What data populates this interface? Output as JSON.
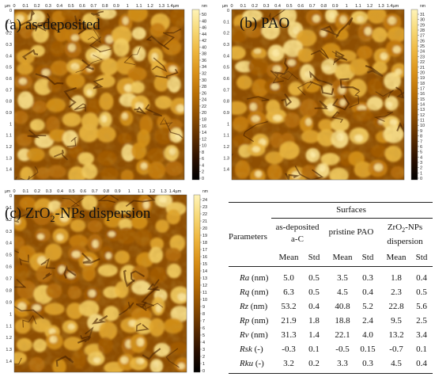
{
  "panels": [
    {
      "id": "a",
      "label": "(a) as-deposited",
      "unit": "nm",
      "axis_unit": "µm",
      "x_ticks": [
        "0",
        "0.1",
        "0.2",
        "0.3",
        "0.4",
        "0.5",
        "0.6",
        "0.7",
        "0.8",
        "0.9",
        "1",
        "1.1",
        "1.2",
        "1.3",
        "1.4"
      ],
      "x_last_suffix": "µm",
      "y_ticks": [
        "0",
        "0.1",
        "0.2",
        "0.3",
        "0.4",
        "0.5",
        "0.6",
        "0.7",
        "0.8",
        "0.9",
        "1",
        "1.1",
        "1.2",
        "1.3",
        "1.4"
      ],
      "scale_ticks": [
        "50",
        "48",
        "46",
        "44",
        "42",
        "40",
        "38",
        "36",
        "34",
        "32",
        "30",
        "28",
        "26",
        "24",
        "22",
        "20",
        "18",
        "16",
        "14",
        "12",
        "10",
        "8",
        "6",
        "4",
        "2",
        "0"
      ]
    },
    {
      "id": "b",
      "label": "(b) PAO",
      "unit": "nm",
      "axis_unit": "µm",
      "x_ticks": [
        "0",
        "0.1",
        "0.2",
        "0.3",
        "0.4",
        "0.5",
        "0.6",
        "0.7",
        "0.8",
        "0.9",
        "1",
        "1.1",
        "1.2",
        "1.3",
        "1.4"
      ],
      "x_last_suffix": "µm",
      "y_ticks": [
        "0",
        "0.1",
        "0.2",
        "0.3",
        "0.4",
        "0.5",
        "0.6",
        "0.7",
        "0.8",
        "0.9",
        "1",
        "1.1",
        "1.2",
        "1.3",
        "1.4"
      ],
      "scale_ticks": [
        "31",
        "30",
        "29",
        "28",
        "27",
        "26",
        "25",
        "24",
        "23",
        "22",
        "21",
        "20",
        "19",
        "18",
        "17",
        "16",
        "15",
        "14",
        "13",
        "12",
        "11",
        "10",
        "9",
        "8",
        "7",
        "6",
        "5",
        "4",
        "3",
        "2",
        "1",
        "0"
      ]
    },
    {
      "id": "c",
      "label_prefix": "(c) ZrO",
      "label_sub": "2",
      "label_suffix": "-NPs dispersion",
      "unit": "nm",
      "axis_unit": "µm",
      "x_ticks": [
        "0",
        "0.1",
        "0.2",
        "0.3",
        "0.4",
        "0.5",
        "0.6",
        "0.7",
        "0.8",
        "0.9",
        "1",
        "1.1",
        "1.2",
        "1.3",
        "1.4"
      ],
      "x_last_suffix": "µm",
      "y_ticks": [
        "0",
        "0.1",
        "0.2",
        "0.3",
        "0.4",
        "0.5",
        "0.6",
        "0.7",
        "0.8",
        "0.9",
        "1",
        "1.1",
        "1.2",
        "1.3",
        "1.4"
      ],
      "scale_ticks": [
        "24",
        "23",
        "22",
        "21",
        "20",
        "19",
        "18",
        "17",
        "16",
        "15",
        "14",
        "13",
        "12",
        "11",
        "10",
        "9",
        "8",
        "7",
        "6",
        "5",
        "4",
        "3",
        "2",
        "1",
        "0"
      ]
    }
  ],
  "table": {
    "surfaces_header": "Surfaces",
    "parameters_header": "Parameters",
    "groups": [
      {
        "line1": "as-deposited",
        "line2": "a-C"
      },
      {
        "line1": "pristine PAO",
        "line2": ""
      },
      {
        "line1_prefix": "ZrO",
        "line1_sub": "2",
        "line1_suffix": "-NPs",
        "line2": "dispersion"
      }
    ],
    "mean_label": "Mean",
    "std_label": "Std",
    "rows": [
      {
        "sym": "Ra",
        "unit": " (nm)",
        "values": [
          "5.0",
          "0.5",
          "3.5",
          "0.3",
          "1.8",
          "0.4"
        ]
      },
      {
        "sym": "Rq",
        "unit": " (nm)",
        "values": [
          "6.3",
          "0.5",
          "4.5",
          "0.4",
          "2.3",
          "0.5"
        ]
      },
      {
        "sym": "Rz",
        "unit": " (nm)",
        "values": [
          "53.2",
          "0.4",
          "40.8",
          "5.2",
          "22.8",
          "5.6"
        ]
      },
      {
        "sym": "Rp",
        "unit": " (nm)",
        "values": [
          "21.9",
          "1.8",
          "18.8",
          "2.4",
          "9.5",
          "2.5"
        ]
      },
      {
        "sym": "Rv",
        "unit": " (nm)",
        "values": [
          "31.3",
          "1.4",
          "22.1",
          "4.0",
          "13.2",
          "3.4"
        ]
      },
      {
        "sym": "Rsk",
        "unit": " (-)",
        "values": [
          "-0.3",
          "0.1",
          "-0.5",
          "0.15",
          "-0.7",
          "0.1"
        ]
      },
      {
        "sym": "Rku",
        "unit": " (-)",
        "values": [
          "3.2",
          "0.2",
          "3.3",
          "0.3",
          "4.5",
          "0.4"
        ]
      }
    ]
  },
  "colors": {
    "colormap": [
      "#000000",
      "#2c1000",
      "#5e2e00",
      "#8e4e00",
      "#b86e04",
      "#d99017",
      "#eeb53c",
      "#f7d874",
      "#fff4b8"
    ]
  }
}
